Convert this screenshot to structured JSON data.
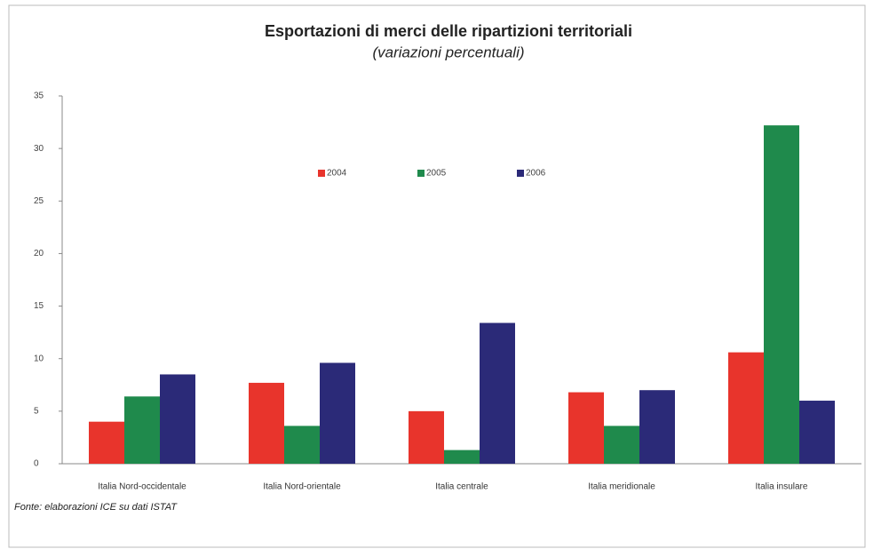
{
  "chart_data": {
    "type": "bar",
    "title": "Esportazioni di merci delle ripartizioni territoriali",
    "subtitle": "(variazioni percentuali)",
    "source": "Fonte: elaborazioni ICE su dati ISTAT",
    "categories": [
      "Italia Nord-occidentale",
      "Italia Nord-orientale",
      "Italia centrale",
      "Italia meridionale",
      "Italia insulare"
    ],
    "series": [
      {
        "name": "2004",
        "color": "#e8342c",
        "values": [
          4.0,
          7.7,
          5.0,
          6.8,
          10.6
        ]
      },
      {
        "name": "2005",
        "color": "#1f8a4c",
        "values": [
          6.4,
          3.6,
          1.3,
          3.6,
          32.2
        ]
      },
      {
        "name": "2006",
        "color": "#2b2a78",
        "values": [
          8.5,
          9.6,
          13.4,
          7.0,
          6.0
        ]
      }
    ],
    "ylim": [
      0,
      35
    ],
    "yticks": [
      0,
      5,
      10,
      15,
      20,
      25,
      30,
      35
    ],
    "grid": false,
    "legend": "top"
  }
}
